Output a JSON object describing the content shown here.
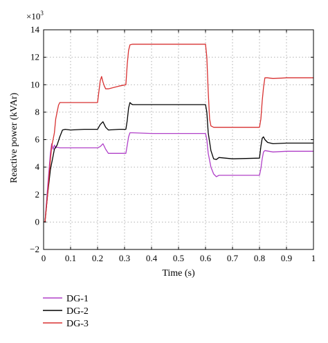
{
  "chart_data": {
    "type": "line",
    "xlabel": "Time (s)",
    "ylabel": "Reactive power (kVAr)",
    "y_multiplier": "×10",
    "y_multiplier_exp": "3",
    "xlim": [
      0,
      1
    ],
    "ylim": [
      -2,
      14
    ],
    "xticks": [
      "0",
      "0.1",
      "0.2",
      "0.3",
      "0.4",
      "0.5",
      "0.6",
      "0.7",
      "0.8",
      "0.9",
      "1"
    ],
    "xtick_values": [
      0,
      0.1,
      0.2,
      0.3,
      0.4,
      0.5,
      0.6,
      0.7,
      0.8,
      0.9,
      1
    ],
    "yticks": [
      "−2",
      "0",
      "2",
      "4",
      "6",
      "8",
      "10",
      "12",
      "14"
    ],
    "ytick_values": [
      -2,
      0,
      2,
      4,
      6,
      8,
      10,
      12,
      14
    ],
    "grid": true,
    "legend_position": "below",
    "series": [
      {
        "name": "DG-1",
        "color": "#b040c8",
        "x": [
          0,
          0.005,
          0.015,
          0.025,
          0.03,
          0.035,
          0.04,
          0.045,
          0.05,
          0.06,
          0.08,
          0.1,
          0.15,
          0.2,
          0.21,
          0.22,
          0.23,
          0.24,
          0.28,
          0.305,
          0.31,
          0.315,
          0.32,
          0.33,
          0.4,
          0.5,
          0.6,
          0.605,
          0.61,
          0.62,
          0.63,
          0.64,
          0.65,
          0.7,
          0.8,
          0.805,
          0.81,
          0.815,
          0.82,
          0.85,
          0.9,
          0.95,
          1.0
        ],
        "y": [
          0,
          0,
          2.5,
          5.0,
          5.7,
          5.3,
          5.6,
          5.4,
          5.45,
          5.4,
          5.4,
          5.4,
          5.4,
          5.4,
          5.5,
          5.7,
          5.3,
          5.0,
          5.0,
          5.0,
          5.6,
          6.2,
          6.5,
          6.5,
          6.45,
          6.45,
          6.45,
          6.0,
          5.0,
          4.0,
          3.5,
          3.3,
          3.4,
          3.4,
          3.4,
          3.9,
          4.6,
          5.1,
          5.2,
          5.1,
          5.15,
          5.15,
          5.15
        ]
      },
      {
        "name": "DG-2",
        "color": "#000000",
        "x": [
          0,
          0.005,
          0.015,
          0.025,
          0.03,
          0.035,
          0.04,
          0.05,
          0.06,
          0.07,
          0.08,
          0.1,
          0.15,
          0.2,
          0.21,
          0.22,
          0.23,
          0.24,
          0.28,
          0.305,
          0.31,
          0.315,
          0.32,
          0.325,
          0.33,
          0.4,
          0.5,
          0.6,
          0.605,
          0.61,
          0.62,
          0.63,
          0.64,
          0.65,
          0.7,
          0.8,
          0.805,
          0.81,
          0.815,
          0.82,
          0.83,
          0.85,
          0.9,
          0.95,
          1.0
        ],
        "y": [
          0,
          0,
          2.0,
          3.8,
          4.3,
          4.8,
          5.3,
          5.6,
          6.2,
          6.7,
          6.75,
          6.7,
          6.75,
          6.75,
          7.1,
          7.3,
          6.9,
          6.7,
          6.75,
          6.75,
          7.4,
          8.3,
          8.7,
          8.6,
          8.55,
          8.55,
          8.55,
          8.55,
          8.0,
          6.5,
          5.2,
          4.6,
          4.55,
          4.7,
          4.6,
          4.65,
          5.5,
          6.1,
          6.2,
          6.0,
          5.8,
          5.7,
          5.75,
          5.75,
          5.75
        ]
      },
      {
        "name": "DG-3",
        "color": "#d83030",
        "x": [
          0,
          0.005,
          0.015,
          0.025,
          0.03,
          0.035,
          0.04,
          0.045,
          0.05,
          0.055,
          0.06,
          0.07,
          0.1,
          0.15,
          0.2,
          0.205,
          0.21,
          0.215,
          0.22,
          0.225,
          0.23,
          0.24,
          0.28,
          0.305,
          0.31,
          0.315,
          0.32,
          0.33,
          0.4,
          0.5,
          0.6,
          0.605,
          0.61,
          0.615,
          0.62,
          0.63,
          0.65,
          0.7,
          0.8,
          0.805,
          0.81,
          0.815,
          0.82,
          0.83,
          0.85,
          0.9,
          0.95,
          1.0
        ],
        "y": [
          0,
          0,
          2.0,
          4.5,
          5.5,
          6.0,
          6.5,
          7.5,
          8.0,
          8.5,
          8.7,
          8.7,
          8.7,
          8.7,
          8.7,
          9.5,
          10.3,
          10.6,
          10.2,
          9.9,
          9.7,
          9.7,
          9.9,
          10.0,
          11.5,
          12.5,
          12.9,
          12.95,
          12.95,
          12.95,
          12.95,
          12.0,
          9.5,
          7.5,
          7.0,
          6.9,
          6.9,
          6.9,
          6.9,
          7.5,
          8.8,
          9.8,
          10.5,
          10.5,
          10.45,
          10.5,
          10.5,
          10.5
        ]
      }
    ]
  }
}
